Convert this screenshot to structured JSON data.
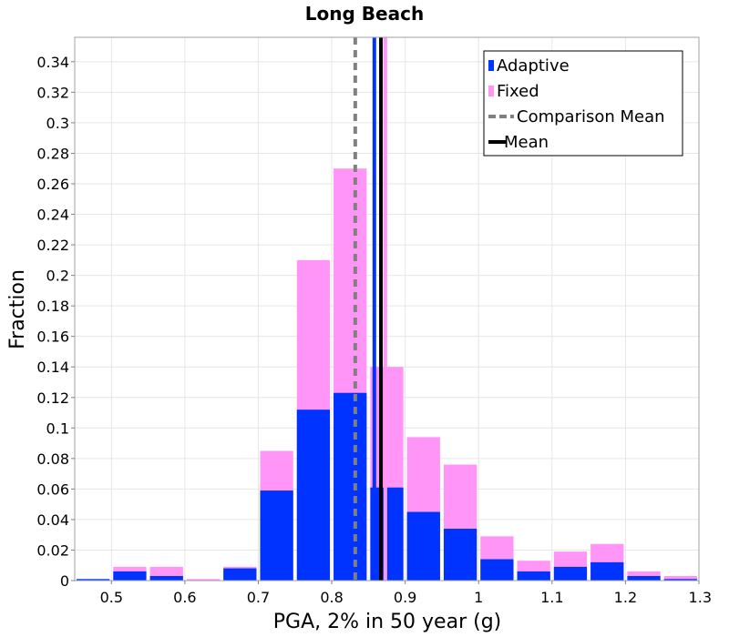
{
  "chart_data": {
    "type": "bar",
    "title": "Long Beach",
    "xlabel": "PGA, 2% in 50 year (g)",
    "ylabel": "Fraction",
    "xlim": [
      0.45,
      1.3
    ],
    "ylim": [
      0,
      0.356
    ],
    "bin_width": 0.05,
    "x_ticks": [
      "0.5",
      "0.6",
      "0.7",
      "0.8",
      "0.9",
      "1",
      "1.1",
      "1.2",
      "1.3"
    ],
    "y_ticks": [
      "0",
      "0.02",
      "0.04",
      "0.06",
      "0.08",
      "0.1",
      "0.12",
      "0.14",
      "0.16",
      "0.18",
      "0.2",
      "0.22",
      "0.24",
      "0.26",
      "0.28",
      "0.3",
      "0.32",
      "0.34"
    ],
    "bin_centers": [
      0.475,
      0.525,
      0.575,
      0.625,
      0.675,
      0.725,
      0.775,
      0.825,
      0.875,
      0.925,
      0.975,
      1.025,
      1.075,
      1.125,
      1.175,
      1.225,
      1.275
    ],
    "series": [
      {
        "name": "Adaptive",
        "color": "#0033ff",
        "values": [
          0.001,
          0.006,
          0.003,
          0.0,
          0.008,
          0.059,
          0.112,
          0.123,
          0.061,
          0.045,
          0.034,
          0.014,
          0.006,
          0.009,
          0.012,
          0.003,
          0.001
        ]
      },
      {
        "name": "Fixed",
        "color": "#ff96f7",
        "values": [
          0.0,
          0.009,
          0.009,
          0.001,
          0.009,
          0.085,
          0.21,
          0.27,
          0.14,
          0.094,
          0.076,
          0.029,
          0.013,
          0.019,
          0.024,
          0.006,
          0.003
        ]
      }
    ],
    "lines": [
      {
        "name": "Comparison Mean",
        "style": "dashed",
        "color": "#808080",
        "x": 0.832
      },
      {
        "name": "Mean",
        "style": "solid",
        "color": "#000000",
        "x": 0.867
      },
      {
        "style": "solid",
        "color": "#0033ff",
        "x": 0.858
      },
      {
        "style": "solid",
        "color": "#ff96f7",
        "x": 0.873
      }
    ],
    "legend": {
      "position": "top-right",
      "items": [
        {
          "label": "Adaptive",
          "swatch": "box",
          "color": "#0033ff"
        },
        {
          "label": "Fixed",
          "swatch": "box",
          "color": "#ff96f7"
        },
        {
          "label": "Comparison Mean",
          "swatch": "dashed",
          "color": "#808080"
        },
        {
          "label": "Mean",
          "swatch": "line",
          "color": "#000000"
        }
      ]
    },
    "grid": true
  }
}
